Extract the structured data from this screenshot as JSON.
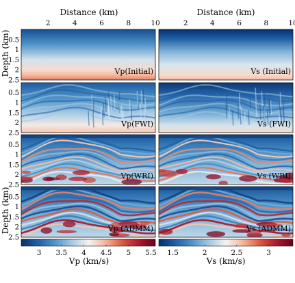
{
  "x_axis": {
    "label": "Distance (km)",
    "ticks": [
      2,
      4,
      6,
      8,
      10
    ],
    "range_km": [
      0,
      10
    ]
  },
  "y_axis": {
    "label": "Depth (km)",
    "ticks": [
      0.5,
      1,
      1.5,
      2,
      2.5
    ],
    "range_km": [
      0,
      2.5
    ]
  },
  "rows": [
    {
      "vp_label": "Vp(Initial)",
      "vs_label": "Vs (Initial)",
      "depth_label_shown": true
    },
    {
      "vp_label": "Vp(FWI)",
      "vs_label": "Vs (FWI)",
      "depth_label_shown": false
    },
    {
      "vp_label": "Vp(WRI)",
      "vs_label": "Vs (WRI)",
      "depth_label_shown": false
    },
    {
      "vp_label": "Vp (ADMM)",
      "vs_label": "Vs (ADMM)",
      "depth_label_shown": true
    }
  ],
  "colorbars": {
    "vp": {
      "label": "Vp (km/s)",
      "ticks": [
        3,
        3.5,
        4,
        4.5,
        5,
        5.5
      ],
      "range": [
        2.6,
        5.6
      ]
    },
    "vs": {
      "label": "Vs (km/s)",
      "ticks": [
        1.5,
        2,
        2.5,
        3
      ],
      "range": [
        1.28,
        3.38
      ]
    }
  },
  "colormap": [
    "#08306b",
    "#1f5fa6",
    "#4f95c9",
    "#a3c9e3",
    "#f3f3f3",
    "#f7b89c",
    "#de5a43",
    "#b2182b",
    "#67001f"
  ]
}
